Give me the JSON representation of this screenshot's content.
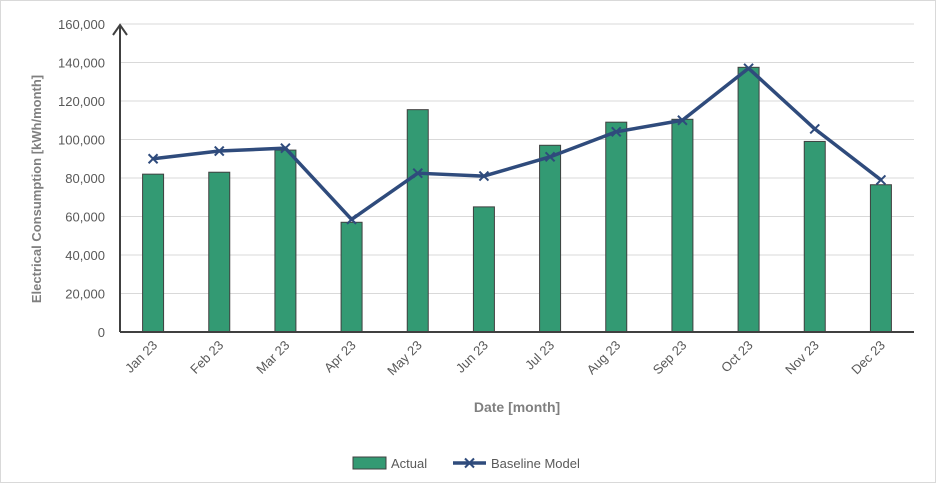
{
  "chart_data": {
    "type": "bar",
    "title": "",
    "xlabel": "Date [month]",
    "ylabel": "Electrical Consumption [kWh/month]",
    "categories": [
      "Jan 23",
      "Feb 23",
      "Mar 23",
      "Apr 23",
      "May 23",
      "Jun 23",
      "Jul 23",
      "Aug 23",
      "Sep 23",
      "Oct 23",
      "Nov 23",
      "Dec 23"
    ],
    "ylim": [
      0,
      160000
    ],
    "yticks": [
      0,
      20000,
      40000,
      60000,
      80000,
      100000,
      120000,
      140000,
      160000
    ],
    "ytick_labels": [
      "0",
      "20,000",
      "40,000",
      "60,000",
      "80,000",
      "100,000",
      "120,000",
      "140,000",
      "160,000"
    ],
    "grid": true,
    "legend_position": "bottom-center",
    "series": [
      {
        "name": "Actual",
        "kind": "bar",
        "color": "#339a73",
        "values": [
          82000,
          83000,
          94500,
          57000,
          115500,
          65000,
          97000,
          109000,
          110500,
          137500,
          99000,
          76500
        ]
      },
      {
        "name": "Baseline Model",
        "kind": "line",
        "color": "#2f4b7c",
        "marker": "x",
        "values": [
          90000,
          94000,
          95500,
          58500,
          82500,
          81000,
          91000,
          104000,
          110000,
          137000,
          105500,
          79000
        ]
      }
    ]
  }
}
